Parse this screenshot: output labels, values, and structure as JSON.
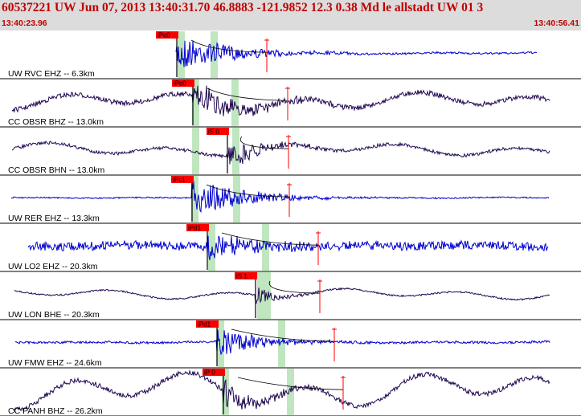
{
  "header": {
    "title": "60537221 UW Jun 07, 2013 13:40:31.70    46.8883 -121.9852 12.3 0.38 Md le allstadt UW 01    3",
    "start_time": "13:40:23.96",
    "end_time": "13:40:56.41"
  },
  "colors": {
    "header_bg": "#dcdcdc",
    "header_text": "#c00000",
    "vertical_channel": "#0000d0",
    "horizontal_channel": "#200850",
    "pick_marker": "#ff0000",
    "window_band": "#bfe6bf"
  },
  "traces": [
    {
      "label": "UW RVC EHZ -- 6.3km",
      "pick": "iPc0",
      "channel": "vertical"
    },
    {
      "label": "CC OBSR BHZ -- 13.0km",
      "pick": "iPc0",
      "channel": "horizontal"
    },
    {
      "label": "CC OBSR BHN -- 13.0km",
      "pick": "iS 0",
      "channel": "horizontal"
    },
    {
      "label": "UW RER EHZ -- 13.3km",
      "pick": "iPc1",
      "channel": "vertical"
    },
    {
      "label": "UW LO2 EHZ -- 20.3km",
      "pick": "iPd1",
      "channel": "vertical"
    },
    {
      "label": "UW LON BHE -- 20.3km",
      "pick": "iS 1",
      "channel": "horizontal"
    },
    {
      "label": "UW FMW EHZ -- 24.6km",
      "pick": "iPd1",
      "channel": "vertical"
    },
    {
      "label": "CC PANH BHZ -- 26.2km",
      "pick": "iP 0",
      "channel": "horizontal"
    }
  ]
}
